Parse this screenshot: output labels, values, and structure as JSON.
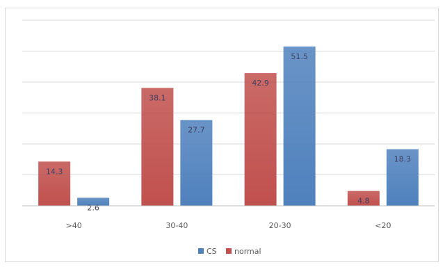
{
  "chart_data": {
    "type": "bar",
    "categories": [
      ">40",
      "30-40",
      "20-30",
      "<20"
    ],
    "series": [
      {
        "name": "normal",
        "values": [
          14.3,
          38.1,
          42.9,
          4.8
        ],
        "color": "#c0504d"
      },
      {
        "name": "CS",
        "values": [
          2.6,
          27.7,
          51.5,
          18.3
        ],
        "color": "#4f81bd"
      }
    ],
    "legend_order": [
      "CS",
      "normal"
    ],
    "ylim": [
      0,
      60
    ],
    "y_gridlines": [
      0,
      10,
      20,
      30,
      40,
      50,
      60
    ],
    "grid": true,
    "legend_position": "bottom"
  }
}
